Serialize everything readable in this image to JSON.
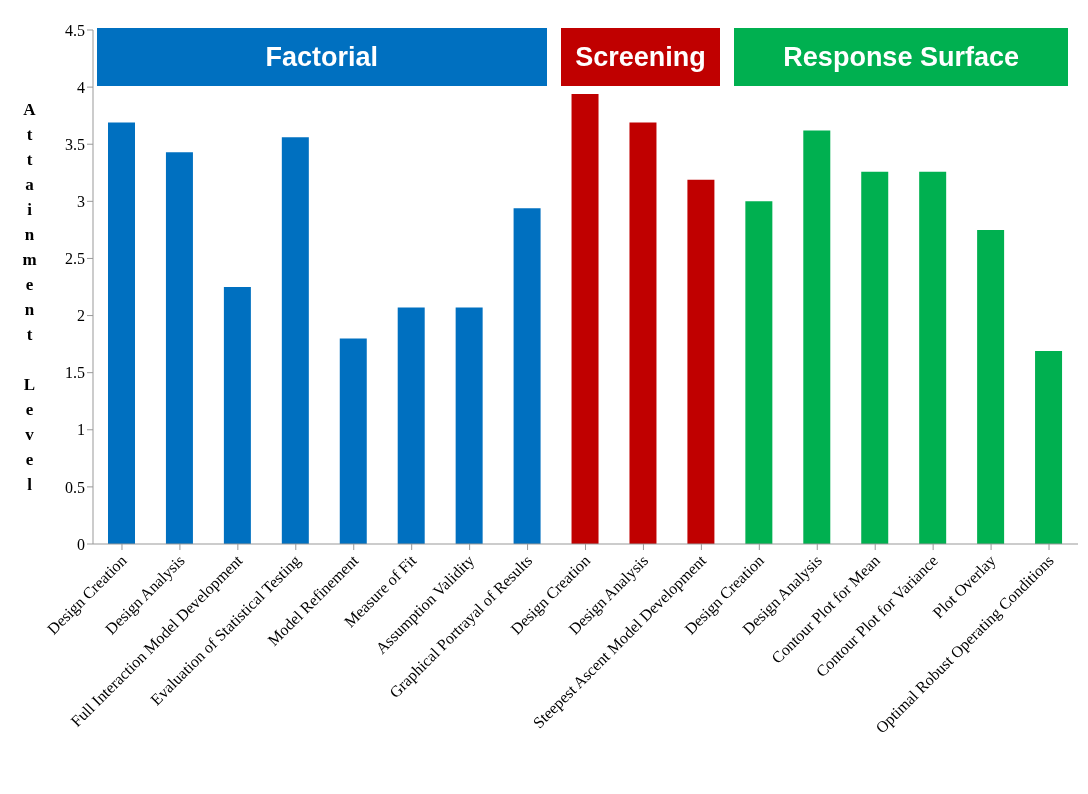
{
  "chart_data": {
    "type": "bar",
    "ylabel": "Attainment Level",
    "categories": [
      "Design Creation",
      "Design Analysis",
      "Full Interaction Model Development",
      "Evaluation of Statistical Testing",
      "Model Refinement",
      "Measure of Fit",
      "Assumption Validity",
      "Graphical Portrayal of Results",
      "Design Creation",
      "Design Analysis",
      "Steepest Ascent Model Development",
      "Design Creation",
      "Design Analysis",
      "Contour Plot for Mean",
      "Contour Plot for Variance",
      "Plot Overlay",
      "Optimal Robust Operating Conditions"
    ],
    "values": [
      3.69,
      3.43,
      2.25,
      3.56,
      1.8,
      2.07,
      2.07,
      2.94,
      3.94,
      3.69,
      3.19,
      3.0,
      3.62,
      3.26,
      3.26,
      2.75,
      1.69
    ],
    "colors": [
      "#0070c0",
      "#0070c0",
      "#0070c0",
      "#0070c0",
      "#0070c0",
      "#0070c0",
      "#0070c0",
      "#0070c0",
      "#c00000",
      "#c00000",
      "#c00000",
      "#00b050",
      "#00b050",
      "#00b050",
      "#00b050",
      "#00b050",
      "#00b050"
    ],
    "ylim": [
      0,
      4.5
    ],
    "yticks": [
      0,
      0.5,
      1,
      1.5,
      2,
      2.5,
      3,
      3.5,
      4,
      4.5
    ],
    "grid": false,
    "legend": false,
    "annotations": [
      "Factorial",
      "Screening",
      "Response Surface"
    ]
  }
}
